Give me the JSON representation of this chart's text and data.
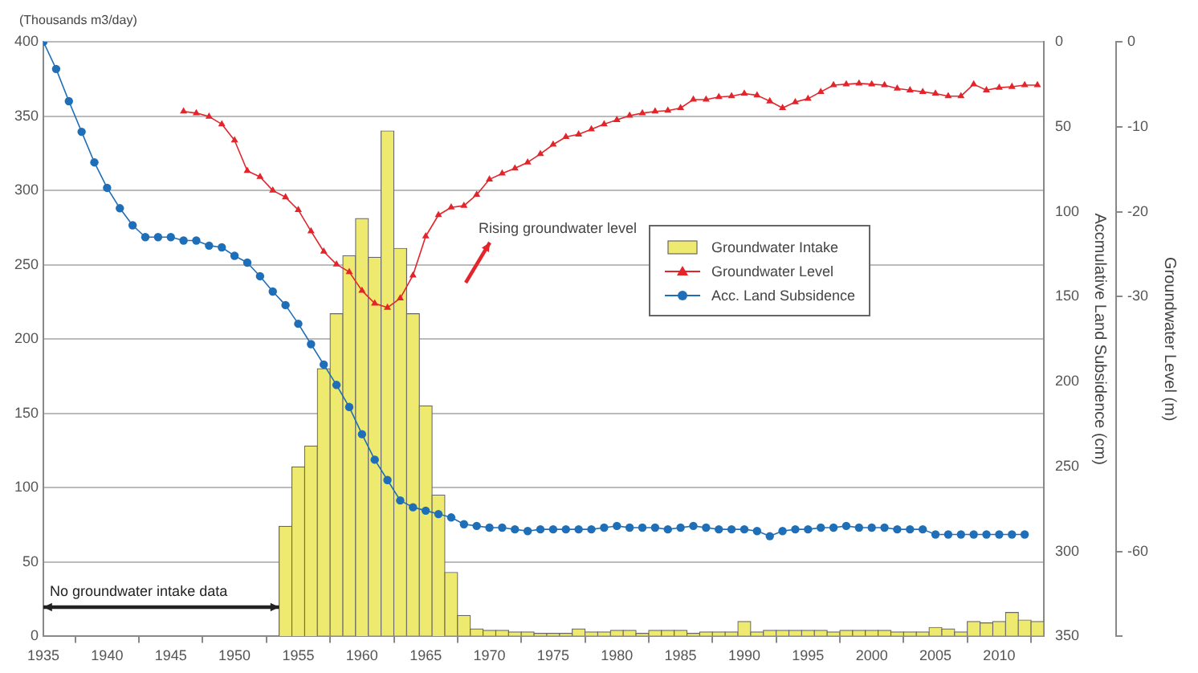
{
  "chart_data": {
    "type": "bar",
    "ylabel": "(Thousands m3/day)",
    "y2label": "Accmulative Land Subsidence (cm)",
    "y3label": "Groundwater Level (m)",
    "xlim": [
      1935,
      2013.5
    ],
    "xticks": [
      1935,
      1940,
      1945,
      1950,
      1955,
      1960,
      1965,
      1970,
      1975,
      1980,
      1985,
      1990,
      1995,
      2000,
      2005,
      2010
    ],
    "ylim": [
      0,
      400
    ],
    "yticks": [
      0,
      50,
      100,
      150,
      200,
      250,
      300,
      350,
      400
    ],
    "y2lim": [
      350,
      0
    ],
    "y2ticks": [
      0,
      50,
      100,
      150,
      200,
      250,
      300,
      350
    ],
    "y3lim": [
      -70,
      0
    ],
    "y3ticks": [
      0,
      -10,
      -20,
      -30,
      -60,
      {
        "value": -70,
        "label": null
      }
    ],
    "grid": "y",
    "legend": "right",
    "annotations": [
      "Rising groundwater level",
      {
        "text": "No groundwater intake data",
        "x": 1953.5,
        "y": 20
      }
    ],
    "series": [
      {
        "name": "Groundwater Intake",
        "color": "#eeea6f",
        "x": [
          1954,
          1955,
          1956,
          1957,
          1958,
          1959,
          1960,
          1961,
          1962,
          1963,
          1964,
          1965,
          1966,
          1967,
          1968,
          1969,
          1970,
          1971,
          1972,
          1973,
          1974,
          1975,
          1976,
          1977,
          1978,
          1979,
          1980,
          1981,
          1982,
          1983,
          1984,
          1985,
          1986,
          1987,
          1988,
          1989,
          1990,
          1991,
          1992,
          1993,
          1994,
          1995,
          1996,
          1997,
          1998,
          1999,
          2000,
          2001,
          2002,
          2003,
          2004,
          2005,
          2006,
          2007,
          2008,
          2009,
          2010,
          2011,
          2012,
          2013
        ],
        "values": [
          74,
          114,
          128,
          180,
          217,
          256,
          281,
          255,
          340,
          261,
          217,
          155,
          95,
          43,
          14,
          5,
          4,
          4,
          3,
          3,
          2,
          2,
          2,
          5,
          3,
          3,
          4,
          4,
          2,
          4,
          4,
          4,
          2,
          3,
          3,
          3,
          10,
          3,
          4,
          4,
          4,
          4,
          4,
          3,
          4,
          4,
          4,
          4,
          3,
          3,
          3,
          6,
          5,
          3,
          10,
          9,
          10,
          16,
          11,
          10
        ]
      },
      {
        "name": "Groundwater Level",
        "type": "line",
        "axis": "y3",
        "marker": "triangle",
        "color": "#e3242b",
        "x": [
          1946,
          1947,
          1948,
          1949,
          1950,
          1951,
          1952,
          1953,
          1954,
          1955,
          1956,
          1957,
          1958,
          1959,
          1960,
          1961,
          1962,
          1963,
          1964,
          1965,
          1966,
          1967,
          1968,
          1969,
          1970,
          1971,
          1972,
          1973,
          1974,
          1975,
          1976,
          1977,
          1978,
          1979,
          1980,
          1981,
          1982,
          1983,
          1984,
          1985,
          1986,
          1987,
          1988,
          1989,
          1990,
          1991,
          1992,
          1993,
          1994,
          1995,
          1996,
          1997,
          1998,
          1999,
          2000,
          2001,
          2002,
          2003,
          2004,
          2005,
          2006,
          2007,
          2008,
          2009,
          2010,
          2011,
          2012,
          2013
        ],
        "values": [
          -8.2,
          -8.4,
          -8.8,
          -9.7,
          -11.6,
          -15.2,
          -15.9,
          -17.5,
          -18.3,
          -19.8,
          -22.3,
          -24.7,
          -26.2,
          -27.1,
          -29.3,
          -30.8,
          -31.3,
          -30.2,
          -27.5,
          -22.9,
          -20.4,
          -19.5,
          -19.3,
          -18.0,
          -16.2,
          -15.5,
          -14.9,
          -14.2,
          -13.2,
          -12.1,
          -11.2,
          -10.9,
          -10.3,
          -9.7,
          -9.2,
          -8.7,
          -8.4,
          -8.2,
          -8.1,
          -7.8,
          -6.8,
          -6.8,
          -6.5,
          -6.4,
          -6.1,
          -6.3,
          -7.0,
          -7.8,
          -7.1,
          -6.7,
          -5.9,
          -5.1,
          -5.0,
          -4.9,
          -5.0,
          -5.1,
          -5.5,
          -5.7,
          -5.9,
          -6.1,
          -6.4,
          -6.4,
          -5.0,
          -5.7,
          -5.4,
          -5.3,
          -5.1,
          -5.1
        ]
      },
      {
        "name": "Acc. Land Subsidence",
        "type": "line",
        "axis": "y2",
        "marker": "circle",
        "color": "#1e6fb8",
        "x": [
          1935,
          1936,
          1937,
          1938,
          1939,
          1940,
          1941,
          1942,
          1943,
          1944,
          1945,
          1946,
          1947,
          1948,
          1949,
          1950,
          1951,
          1952,
          1953,
          1954,
          1955,
          1956,
          1957,
          1958,
          1959,
          1960,
          1961,
          1962,
          1963,
          1964,
          1965,
          1966,
          1967,
          1968,
          1969,
          1970,
          1971,
          1972,
          1973,
          1974,
          1975,
          1976,
          1977,
          1978,
          1979,
          1980,
          1981,
          1982,
          1983,
          1984,
          1985,
          1986,
          1987,
          1988,
          1989,
          1990,
          1991,
          1992,
          1993,
          1994,
          1995,
          1996,
          1997,
          1998,
          1999,
          2000,
          2001,
          2002,
          2003,
          2004,
          2005,
          2006,
          2007,
          2008,
          2009,
          2010,
          2011,
          2012
        ],
        "values": [
          0,
          16,
          35,
          53,
          71,
          86,
          98,
          108,
          115,
          115,
          115,
          117,
          117,
          120,
          121,
          126,
          130,
          138,
          147,
          155,
          166,
          178,
          190,
          202,
          215,
          231,
          246,
          258,
          270,
          274,
          276,
          278,
          280,
          284,
          285,
          286,
          286,
          287,
          288,
          287,
          287,
          287,
          287,
          287,
          286,
          285,
          286,
          286,
          286,
          287,
          286,
          285,
          286,
          287,
          287,
          287,
          288,
          291,
          288,
          287,
          287,
          286,
          286,
          285,
          286,
          286,
          286,
          287,
          287,
          287,
          290,
          290,
          290,
          290,
          290,
          290,
          290,
          290
        ]
      }
    ]
  }
}
